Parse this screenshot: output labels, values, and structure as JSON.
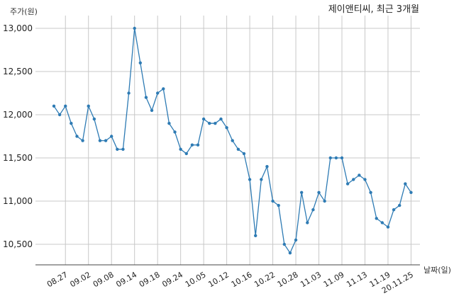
{
  "chart_data": {
    "type": "line",
    "title": "제이앤티씨, 최근 3개월",
    "ylabel": "주가(원)",
    "xlabel": "날짜(일)",
    "ylim": [
      10250,
      13100
    ],
    "yticks": [
      10500,
      11000,
      11500,
      12000,
      12500,
      13000
    ],
    "ytick_labels": [
      "10,500",
      "11,000",
      "11,500",
      "12,000",
      "12,500",
      "13,000"
    ],
    "xtick_labels": [
      "08.27",
      "09.02",
      "09.08",
      "09.14",
      "09.18",
      "09.24",
      "10.05",
      "10.12",
      "10.16",
      "10.22",
      "10.28",
      "11.03",
      "11.09",
      "11.13",
      "11.19",
      "20.11.25"
    ],
    "xtick_index": [
      2,
      6,
      10,
      14,
      18,
      22,
      26,
      30,
      34,
      38,
      42,
      46,
      50,
      54,
      58,
      62
    ],
    "grid": true,
    "color": "#2e7bb4",
    "series": [
      {
        "values": [
          12100,
          12000,
          12100,
          11900,
          11750,
          11700,
          12100,
          11950,
          11700,
          11700,
          11750,
          11600,
          11600,
          12250,
          13000,
          12600,
          12200,
          12050,
          12250,
          12300,
          11900,
          11800,
          11600,
          11550,
          11650,
          11650,
          11950,
          11900,
          11900,
          11950,
          11850,
          11700,
          11600,
          11550,
          11250,
          10600,
          11250,
          11400,
          11000,
          10950,
          10500,
          10400,
          10550,
          11100,
          10750,
          10900,
          11100,
          11000,
          11500,
          11500,
          11500,
          11200,
          11250,
          11300,
          11250,
          11100,
          10800,
          10750,
          10700,
          10900,
          10950,
          11200,
          11100
        ]
      }
    ]
  }
}
